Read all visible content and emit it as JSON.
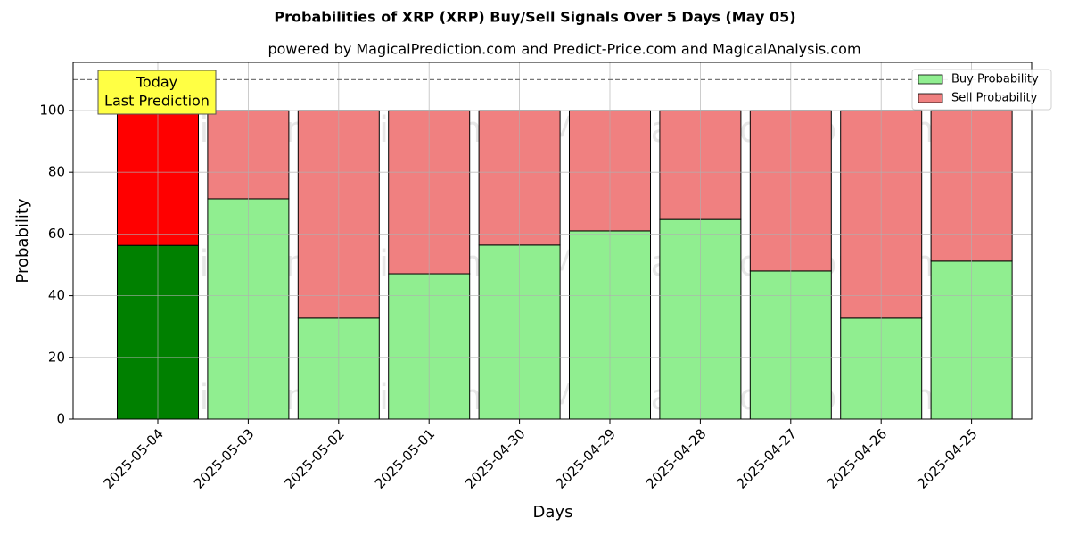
{
  "chart_data": {
    "type": "bar",
    "stacked": true,
    "title": "Probabilities of XRP (XRP) Buy/Sell Signals Over 5 Days (May 05)",
    "subtitle": "powered by MagicalPrediction.com and Predict-Price.com and MagicalAnalysis.com",
    "x_label": "Days",
    "y_label": "Probability",
    "categories": [
      "2025-05-04",
      "2025-05-03",
      "2025-05-02",
      "2025-05-01",
      "2025-04-30",
      "2025-04-29",
      "2025-04-28",
      "2025-04-27",
      "2025-04-26",
      "2025-04-25"
    ],
    "series": [
      {
        "name": "Buy Probability",
        "color": "#90ee90",
        "today_color": "#008000",
        "values": [
          56.3,
          71.4,
          32.7,
          47.1,
          56.4,
          61.0,
          64.7,
          48.0,
          32.7,
          51.2
        ]
      },
      {
        "name": "Sell Probability",
        "color": "#f08080",
        "today_color": "#ff0000",
        "values": [
          43.7,
          28.6,
          67.3,
          52.9,
          43.6,
          39.0,
          35.3,
          52.0,
          67.3,
          48.8
        ]
      }
    ],
    "ylim": [
      0,
      115.6
    ],
    "yticks": [
      0,
      20,
      40,
      60,
      80,
      100
    ],
    "grid": true,
    "reference_line": 110,
    "annotation": [
      "Today",
      "Last Prediction"
    ],
    "legend": "upper right",
    "watermarks": [
      "MagicalAnalysis.com",
      "MagicalPrediction.com"
    ]
  }
}
